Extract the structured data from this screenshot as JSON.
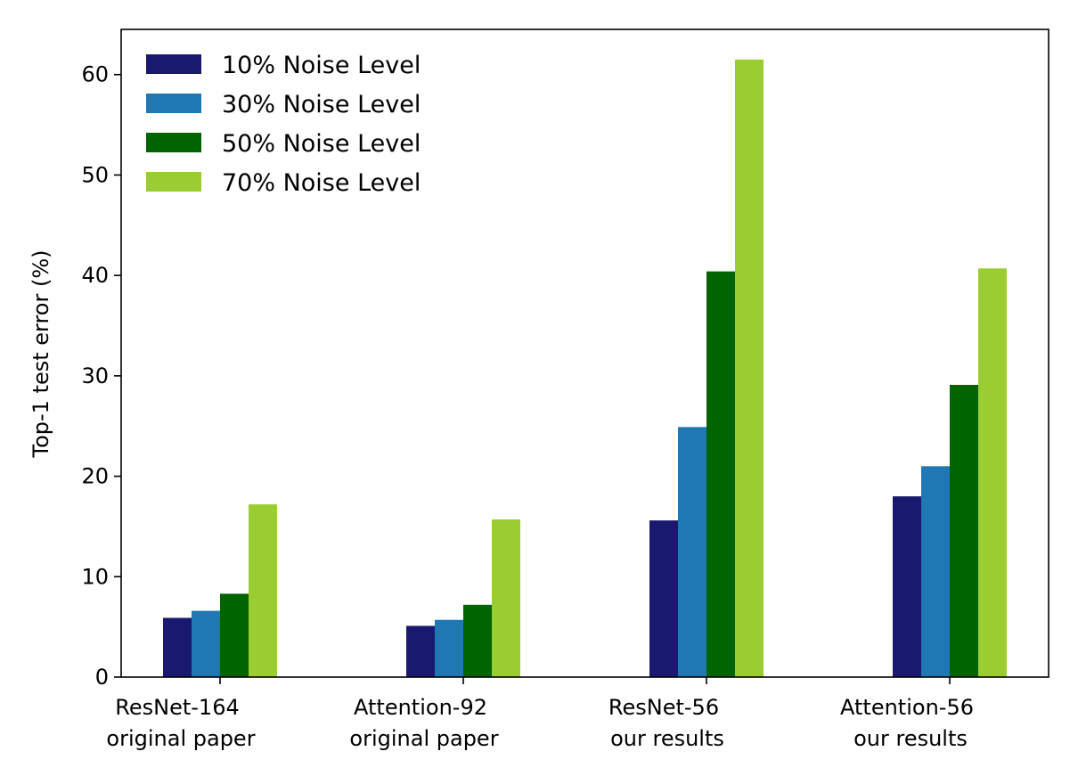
{
  "chart_data": {
    "type": "bar",
    "title": "",
    "xlabel": "",
    "ylabel": "Top-1 test error (%)",
    "ylim": [
      0,
      64.5
    ],
    "yticks": [
      0,
      10,
      20,
      30,
      40,
      50,
      60
    ],
    "grid": false,
    "legend_position": "top-left",
    "categories": [
      [
        "ResNet-164",
        "original paper"
      ],
      [
        "Attention-92",
        "original paper"
      ],
      [
        "ResNet-56",
        "our results"
      ],
      [
        "Attention-56",
        "our results"
      ]
    ],
    "series": [
      {
        "name": "10% Noise Level",
        "color": "#191970",
        "values": [
          5.9,
          5.1,
          15.6,
          18.0
        ]
      },
      {
        "name": "30% Noise Level",
        "color": "#1f77b4",
        "values": [
          6.6,
          5.7,
          24.9,
          21.0
        ]
      },
      {
        "name": "50% Noise Level",
        "color": "#006400",
        "values": [
          8.3,
          7.2,
          40.4,
          29.1
        ]
      },
      {
        "name": "70% Noise Level",
        "color": "#9acd32",
        "values": [
          17.2,
          15.7,
          61.5,
          40.7
        ]
      }
    ]
  }
}
